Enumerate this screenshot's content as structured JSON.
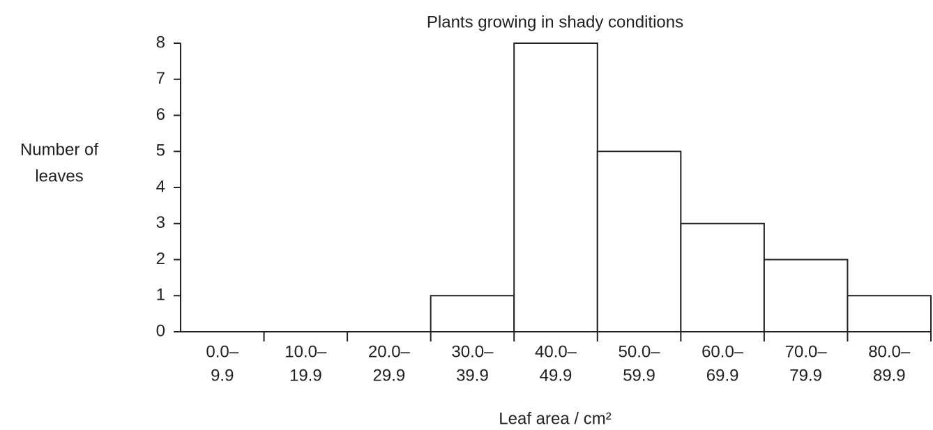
{
  "chart_data": {
    "type": "bar",
    "title": "Plants growing in shady conditions",
    "y_label": [
      "Number of",
      "leaves"
    ],
    "x_label": "Leaf area / cm²",
    "categories": [
      [
        "0.0–",
        "9.9"
      ],
      [
        "10.0–",
        "19.9"
      ],
      [
        "20.0–",
        "29.9"
      ],
      [
        "30.0–",
        "39.9"
      ],
      [
        "40.0–",
        "49.9"
      ],
      [
        "50.0–",
        "59.9"
      ],
      [
        "60.0–",
        "69.9"
      ],
      [
        "70.0–",
        "79.9"
      ],
      [
        "80.0–",
        "89.9"
      ]
    ],
    "values": [
      0,
      0,
      0,
      1,
      8,
      5,
      3,
      2,
      1
    ],
    "color": "#ffffff",
    "ylim": [
      0,
      8
    ],
    "yticks": [
      0,
      1,
      2,
      3,
      4,
      5,
      6,
      7,
      8
    ],
    "grid": false
  }
}
